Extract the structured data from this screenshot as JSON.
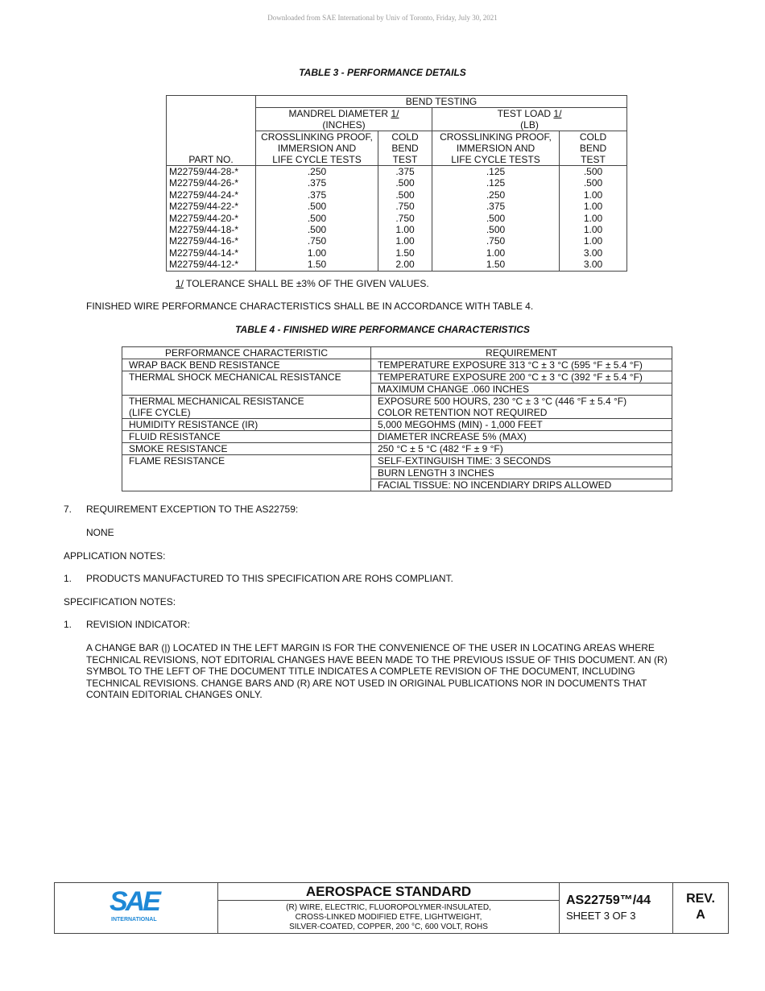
{
  "header_note": "Downloaded from SAE International by Univ of Toronto, Friday, July 30, 2021",
  "table3": {
    "caption": "TABLE 3 - PERFORMANCE DETAILS",
    "part_no_header": "PART NO.",
    "group_header": "BEND TESTING",
    "mandrel_header": "MANDREL DIAMETER ",
    "mandrel_ref": "1/",
    "mandrel_unit": "(INCHES)",
    "load_header": "TEST LOAD ",
    "load_ref": "1/",
    "load_unit": "(LB)",
    "sub_cross": [
      "CROSSLINKING PROOF,",
      "IMMERSION AND",
      "LIFE CYCLE TESTS"
    ],
    "sub_cold": [
      "COLD",
      "BEND",
      "TEST"
    ],
    "rows": [
      [
        "M22759/44-28-*",
        ".250",
        ".375",
        ".125",
        ".500"
      ],
      [
        "M22759/44-26-*",
        ".375",
        ".500",
        ".125",
        ".500"
      ],
      [
        "M22759/44-24-*",
        ".375",
        ".500",
        ".250",
        "1.00"
      ],
      [
        "M22759/44-22-*",
        ".500",
        ".750",
        ".375",
        "1.00"
      ],
      [
        "M22759/44-20-*",
        ".500",
        ".750",
        ".500",
        "1.00"
      ],
      [
        "M22759/44-18-*",
        ".500",
        "1.00",
        ".500",
        "1.00"
      ],
      [
        "M22759/44-16-*",
        ".750",
        "1.00",
        ".750",
        "1.00"
      ],
      [
        "M22759/44-14-*",
        "1.00",
        "1.50",
        "1.00",
        "3.00"
      ],
      [
        "M22759/44-12-*",
        "1.50",
        "2.00",
        "1.50",
        "3.00"
      ]
    ],
    "footnote_ref": "1/",
    "footnote": " TOLERANCE SHALL BE ±3% OF THE GIVEN VALUES."
  },
  "para1": "FINISHED WIRE PERFORMANCE CHARACTERISTICS SHALL BE IN ACCORDANCE WITH TABLE 4.",
  "table4": {
    "caption": "TABLE 4 - FINISHED WIRE PERFORMANCE CHARACTERISTICS",
    "headers": [
      "PERFORMANCE CHARACTERISTIC",
      "REQUIREMENT"
    ],
    "wrap_back": "WRAP BACK BEND RESISTANCE",
    "wrap_back_req": "TEMPERATURE EXPOSURE 313 °C ± 3 °C (595 °F ± 5.4 °F)",
    "thermal_shock": "THERMAL SHOCK MECHANICAL RESISTANCE",
    "thermal_shock_req": [
      "TEMPERATURE EXPOSURE 200 °C ± 3 °C (392 °F ± 5.4 °F)",
      "MAXIMUM CHANGE .060 INCHES"
    ],
    "thermal_mech": [
      "THERMAL MECHANICAL RESISTANCE",
      "(LIFE CYCLE)"
    ],
    "thermal_mech_req": [
      "EXPOSURE 500 HOURS, 230 °C ± 3 °C (446 °F ± 5.4 °F)",
      "COLOR RETENTION NOT REQUIRED"
    ],
    "humidity": "HUMIDITY RESISTANCE (IR)",
    "humidity_req": "5,000 MEGOHMS (MIN) - 1,000 FEET",
    "fluid": "FLUID RESISTANCE",
    "fluid_req": "DIAMETER INCREASE 5% (MAX)",
    "smoke": "SMOKE RESISTANCE",
    "smoke_req": "250 °C ± 5 °C (482 °F ± 9 °F)",
    "flame": "FLAME RESISTANCE",
    "flame_req": [
      "SELF-EXTINGUISH TIME: 3 SECONDS",
      "BURN LENGTH 3 INCHES",
      "FACIAL TISSUE:  NO INCENDIARY DRIPS ALLOWED"
    ]
  },
  "section7": {
    "num": "7.",
    "title": "REQUIREMENT EXCEPTION TO THE AS22759:",
    "body": "NONE"
  },
  "app_notes": {
    "title": "APPLICATION NOTES:",
    "num": "1.",
    "text": "PRODUCTS MANUFACTURED TO THIS SPECIFICATION ARE ROHS COMPLIANT."
  },
  "spec_notes": {
    "title": "SPECIFICATION NOTES:",
    "num": "1.",
    "text": "REVISION INDICATOR:",
    "body": [
      "A CHANGE BAR (|) LOCATED IN THE LEFT MARGIN IS FOR THE CONVENIENCE OF THE USER IN LOCATING AREAS WHERE",
      "TECHNICAL REVISIONS, NOT EDITORIAL CHANGES HAVE BEEN MADE TO THE PREVIOUS ISSUE OF THIS DOCUMENT. AN (R)",
      "SYMBOL TO THE LEFT OF THE DOCUMENT TITLE INDICATES A COMPLETE REVISION OF THE DOCUMENT, INCLUDING",
      "TECHNICAL REVISIONS. CHANGE BARS AND (R) ARE NOT USED IN ORIGINAL PUBLICATIONS NOR IN DOCUMENTS THAT",
      "CONTAIN EDITORIAL CHANGES ONLY."
    ]
  },
  "footer": {
    "logo": "SAE",
    "logo_sub": "INTERNATIONAL",
    "title": "AEROSPACE STANDARD",
    "desc": [
      "(R) WIRE, ELECTRIC, FLUOROPOLYMER-INSULATED,",
      "CROSS-LINKED MODIFIED ETFE, LIGHTWEIGHT,",
      "SILVER-COATED, COPPER, 200 °C, 600 VOLT, ROHS"
    ],
    "doc_no": "AS22759™/44",
    "sheet": "SHEET 3 OF 3",
    "rev_label": "REV.",
    "rev": "A",
    "brand_color": "#1e88d6"
  }
}
